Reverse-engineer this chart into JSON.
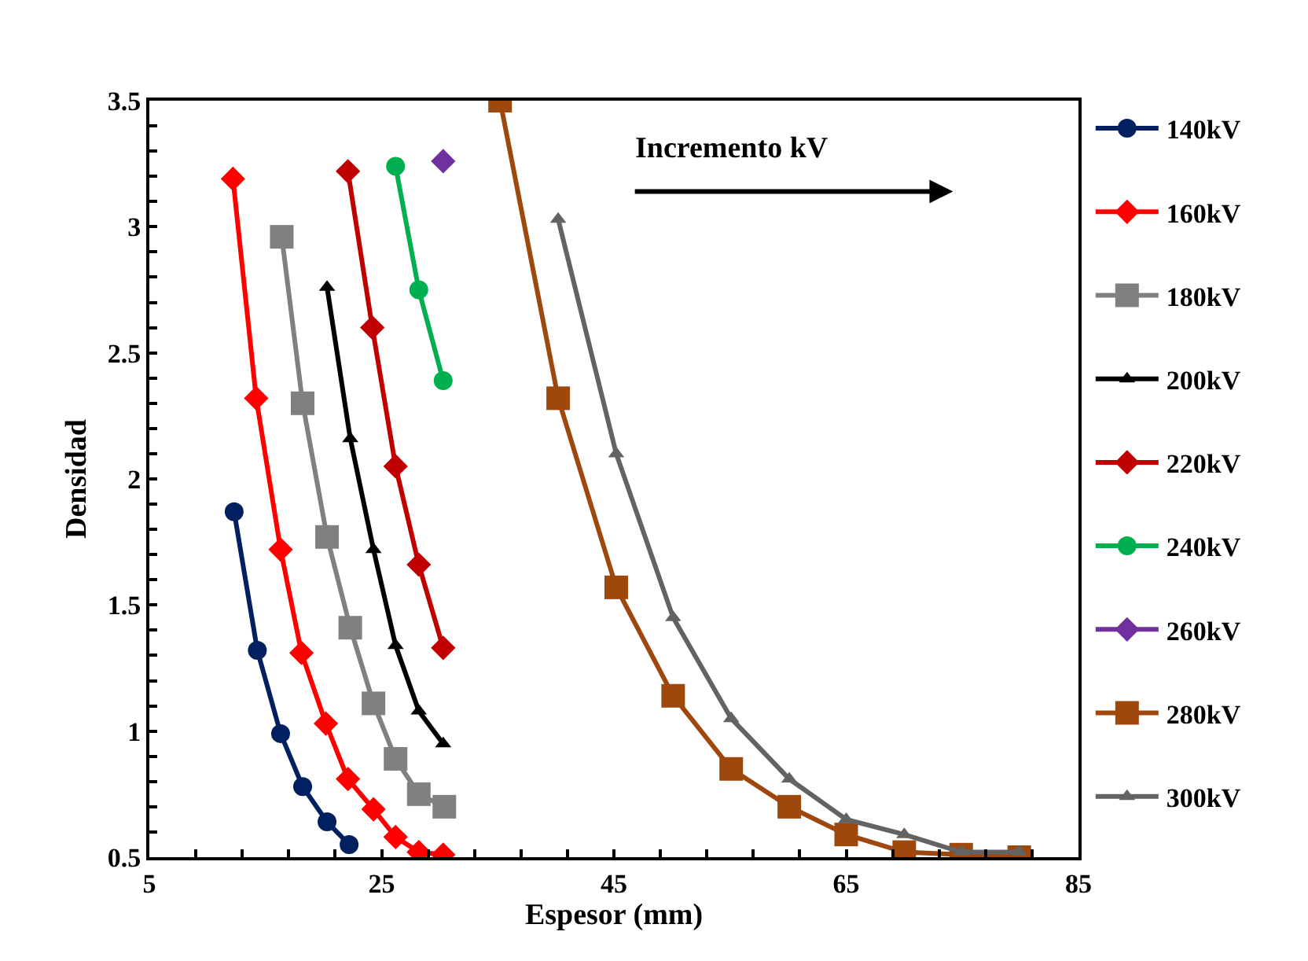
{
  "chart_data": {
    "type": "line",
    "xlabel": "Espesor (mm)",
    "ylabel": "Densidad",
    "xlim": [
      5,
      85
    ],
    "ylim": [
      0.5,
      3.5
    ],
    "xticks": [
      5,
      {
        "value": 9,
        "label": null
      },
      {
        "value": 13,
        "label": null
      },
      {
        "value": 17,
        "label": null
      },
      {
        "value": 21,
        "label": null
      },
      25,
      {
        "value": 29,
        "label": null
      },
      {
        "value": 33,
        "label": null
      },
      {
        "value": 37,
        "label": null
      },
      {
        "value": 41,
        "label": null
      },
      45,
      {
        "value": 49,
        "label": null
      },
      {
        "value": 53,
        "label": null
      },
      {
        "value": 57,
        "label": null
      },
      {
        "value": 61,
        "label": null
      },
      65,
      {
        "value": 69,
        "label": null
      },
      {
        "value": 73,
        "label": null
      },
      {
        "value": 77,
        "label": null
      },
      {
        "value": 81,
        "label": null
      },
      85
    ],
    "yticks": [
      0.5,
      {
        "value": 0.6,
        "label": null
      },
      {
        "value": 0.7,
        "label": null
      },
      {
        "value": 0.8,
        "label": null
      },
      {
        "value": 0.9,
        "label": null
      },
      1,
      {
        "value": 1.1,
        "label": null
      },
      {
        "value": 1.2,
        "label": null
      },
      {
        "value": 1.3,
        "label": null
      },
      {
        "value": 1.4,
        "label": null
      },
      1.5,
      {
        "value": 1.6,
        "label": null
      },
      {
        "value": 1.7,
        "label": null
      },
      {
        "value": 1.8,
        "label": null
      },
      {
        "value": 1.9,
        "label": null
      },
      2,
      {
        "value": 2.1,
        "label": null
      },
      {
        "value": 2.2,
        "label": null
      },
      {
        "value": 2.3,
        "label": null
      },
      {
        "value": 2.4,
        "label": null
      },
      2.5,
      {
        "value": 2.6,
        "label": null
      },
      {
        "value": 2.7,
        "label": null
      },
      {
        "value": 2.8,
        "label": null
      },
      {
        "value": 2.9,
        "label": null
      },
      3,
      {
        "value": 3.1,
        "label": null
      },
      {
        "value": 3.2,
        "label": null
      },
      {
        "value": 3.3,
        "label": null
      },
      {
        "value": 3.4,
        "label": null
      },
      3.5
    ],
    "grid": false,
    "legend": "right",
    "line_style": "solid",
    "annotations": [
      "Incremento kV"
    ],
    "series": [
      {
        "name": "140kV",
        "color": "#002060",
        "marker": "circle",
        "x": [
          12.3,
          14.3,
          16.3,
          18.2,
          20.3,
          22.2
        ],
        "values": [
          1.87,
          1.32,
          0.99,
          0.78,
          0.64,
          0.55
        ]
      },
      {
        "name": "160kV",
        "color": "#ff0000",
        "marker": "diamond",
        "x": [
          12.2,
          14.2,
          16.3,
          18.1,
          20.2,
          22.1,
          24.3,
          26.2,
          28.2,
          30.3
        ],
        "values": [
          3.19,
          2.32,
          1.72,
          1.31,
          1.03,
          0.81,
          0.69,
          0.58,
          0.52,
          0.51
        ]
      },
      {
        "name": "180kV",
        "color": "#808080",
        "marker": "square",
        "x": [
          16.4,
          18.2,
          20.3,
          22.3,
          24.3,
          26.2,
          28.2,
          30.4
        ],
        "values": [
          2.96,
          2.3,
          1.77,
          1.41,
          1.11,
          0.89,
          0.75,
          0.7
        ]
      },
      {
        "name": "200kV",
        "color": "#000000",
        "marker": "triangle",
        "x": [
          20.3,
          22.3,
          24.3,
          26.2,
          28.2,
          30.3
        ],
        "values": [
          2.76,
          2.16,
          1.72,
          1.34,
          1.08,
          0.95
        ]
      },
      {
        "name": "220kV",
        "color": "#c00000",
        "marker": "diamond",
        "x": [
          22.1,
          24.2,
          26.2,
          28.2,
          30.3
        ],
        "values": [
          3.22,
          2.6,
          2.05,
          1.66,
          1.33
        ]
      },
      {
        "name": "240kV",
        "color": "#00b050",
        "marker": "circle",
        "x": [
          26.2,
          28.2,
          30.3
        ],
        "values": [
          3.24,
          2.75,
          2.39
        ]
      },
      {
        "name": "260kV",
        "color": "#7030a0",
        "marker": "diamond",
        "x": [
          30.3
        ],
        "values": [
          3.26
        ]
      },
      {
        "name": "280kV",
        "color": "#9e480e",
        "marker": "square",
        "x": [
          35.2,
          40.2,
          45.2,
          50.1,
          55.1,
          60.1,
          65.0,
          70.0,
          74.9,
          79.9
        ],
        "values": [
          3.5,
          2.32,
          1.57,
          1.14,
          0.85,
          0.7,
          0.59,
          0.52,
          0.51,
          0.5
        ]
      },
      {
        "name": "300kV",
        "color": "#636363",
        "marker": "triangle",
        "x": [
          40.2,
          45.2,
          50.1,
          55.1,
          60.1,
          65.0,
          70.0,
          74.9,
          79.9
        ],
        "values": [
          3.03,
          2.1,
          1.45,
          1.05,
          0.81,
          0.65,
          0.59,
          0.52,
          0.52
        ]
      }
    ]
  }
}
